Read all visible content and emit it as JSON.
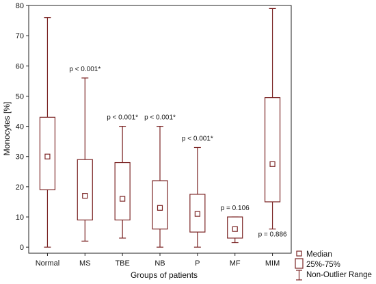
{
  "colors": {
    "box": "#7a2323",
    "axis": "#222222"
  },
  "chart_data": {
    "type": "boxplot",
    "xlabel": "Groups of patients",
    "ylabel": "Monocytes [%]",
    "ylim": [
      -2,
      80
    ],
    "yticks": [
      0,
      10,
      20,
      30,
      40,
      50,
      60,
      70,
      80
    ],
    "categories": [
      "Normal",
      "MS",
      "TBE",
      "NB",
      "P",
      "MF",
      "MIM"
    ],
    "boxes": [
      {
        "category": "Normal",
        "min": 0,
        "q1": 19,
        "median": 30,
        "q3": 43,
        "max": 76,
        "annotation": ""
      },
      {
        "category": "MS",
        "min": 2,
        "q1": 9,
        "median": 17,
        "q3": 29,
        "max": 56,
        "annotation": "p < 0.001*"
      },
      {
        "category": "TBE",
        "min": 3,
        "q1": 9,
        "median": 16,
        "q3": 28,
        "max": 40,
        "annotation": "p < 0.001*"
      },
      {
        "category": "NB",
        "min": 0,
        "q1": 6,
        "median": 13,
        "q3": 22,
        "max": 40,
        "annotation": "p < 0.001*"
      },
      {
        "category": "P",
        "min": 0,
        "q1": 5,
        "median": 11,
        "q3": 17.5,
        "max": 33,
        "annotation": "p < 0.001*"
      },
      {
        "category": "MF",
        "min": 1.5,
        "q1": 3,
        "median": 6,
        "q3": 10,
        "max": 10,
        "annotation": "p = 0.106"
      },
      {
        "category": "MIM",
        "min": 6,
        "q1": 15,
        "median": 27.5,
        "q3": 49.5,
        "max": 79,
        "annotation": "p = 0.886"
      }
    ],
    "legend": [
      "Median",
      "25%-75%",
      "Non-Outlier Range"
    ],
    "legend_position": "bottom-right"
  }
}
